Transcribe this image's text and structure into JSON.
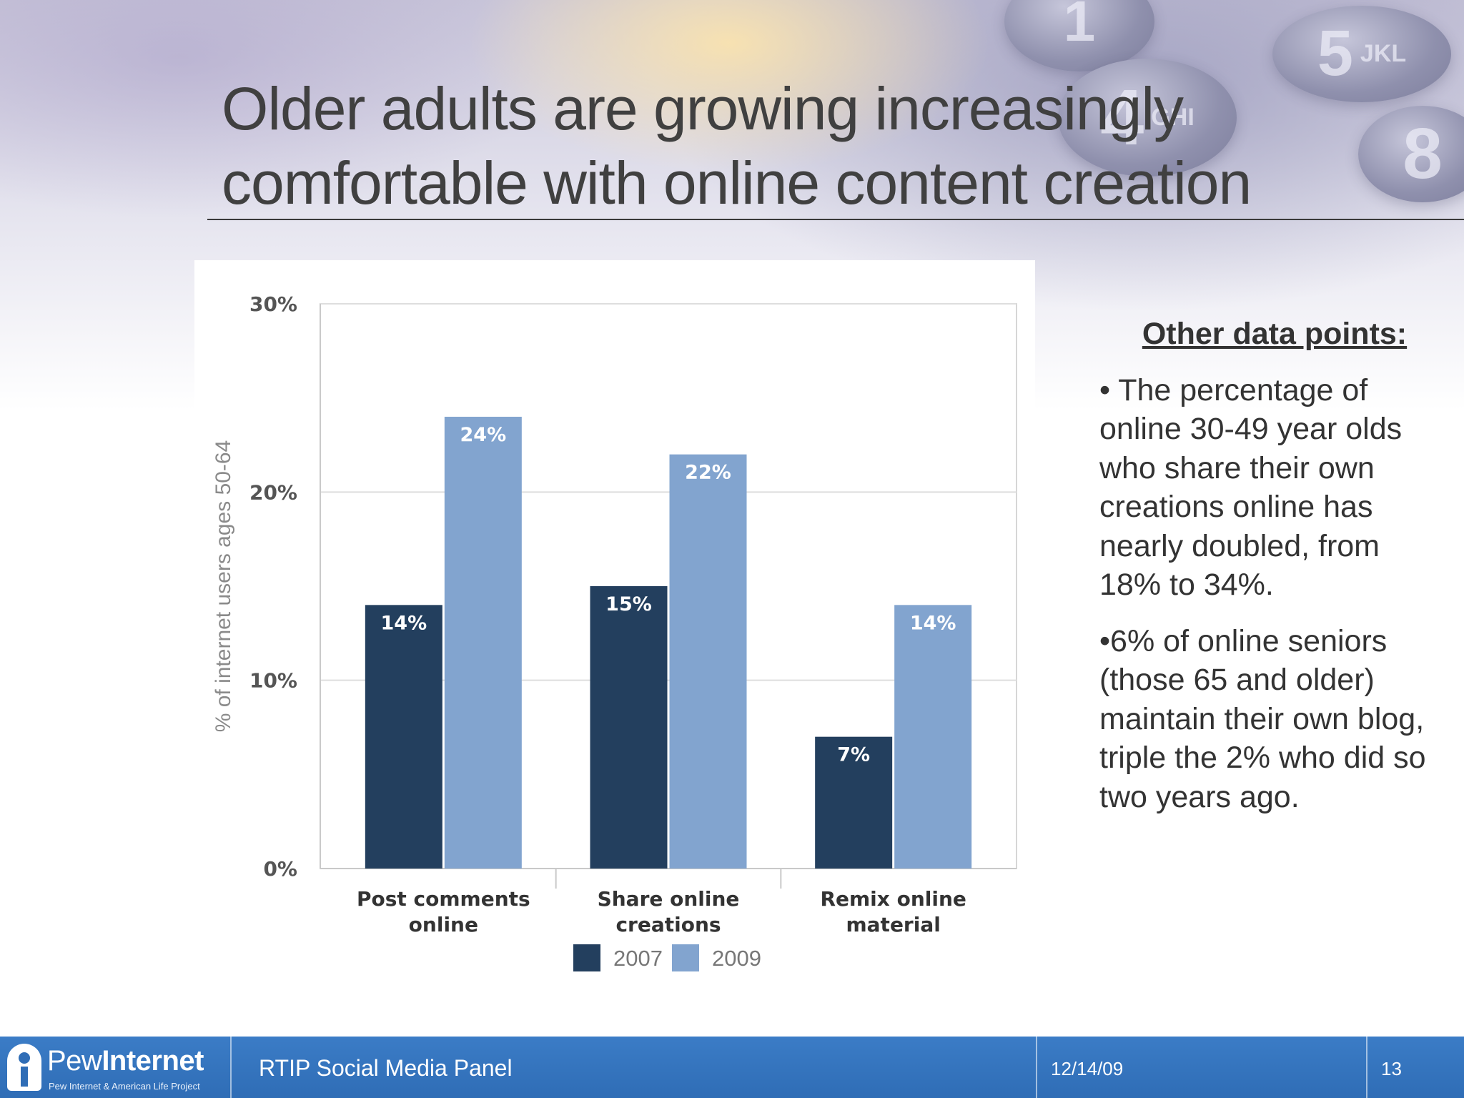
{
  "slide": {
    "title_line1": "Older adults are growing increasingly",
    "title_line2": "comfortable with online content creation"
  },
  "chart_data": {
    "type": "bar",
    "categories": [
      "Post comments online",
      "Share online creations",
      "Remix online material"
    ],
    "category_lines": [
      [
        "Post comments",
        "online"
      ],
      [
        "Share online",
        "creations"
      ],
      [
        "Remix online",
        "material"
      ]
    ],
    "series": [
      {
        "name": "2007",
        "values": [
          14,
          15,
          7
        ],
        "labels": [
          "14%",
          "15%",
          "7%"
        ],
        "color": "#233f5e"
      },
      {
        "name": "2009",
        "values": [
          24,
          22,
          14
        ],
        "labels": [
          "24%",
          "22%",
          "14%"
        ],
        "color": "#82a4cf"
      }
    ],
    "ylabel": "% of internet users ages 50-64",
    "ylim": [
      0,
      30
    ],
    "yticks": [
      0,
      10,
      20,
      30
    ],
    "ytick_labels": [
      "0%",
      "10%",
      "20%",
      "30%"
    ],
    "grid": true,
    "legend_position": "bottom"
  },
  "sidebar": {
    "heading": "Other data points:",
    "bullet1": "• The percentage of online 30-49 year olds who share their own creations online has nearly doubled, from 18% to 34%.",
    "bullet2": "•6% of online seniors (those 65 and older) maintain their own blog, triple the 2% who did so two years ago."
  },
  "keypad": {
    "keys": [
      "1",
      "4",
      "GHI",
      "5",
      "JKL",
      "8"
    ]
  },
  "footer": {
    "logo_word1": "Pew",
    "logo_word2": "Internet",
    "logo_sub": "Pew Internet & American Life Project",
    "presentation_title": "RTIP Social Media Panel",
    "date": "12/14/09",
    "page_number": "13"
  },
  "colors": {
    "footer": "#2f6db6",
    "series_2007": "#233f5e",
    "series_2009": "#82a4cf",
    "title_text": "#404040"
  }
}
